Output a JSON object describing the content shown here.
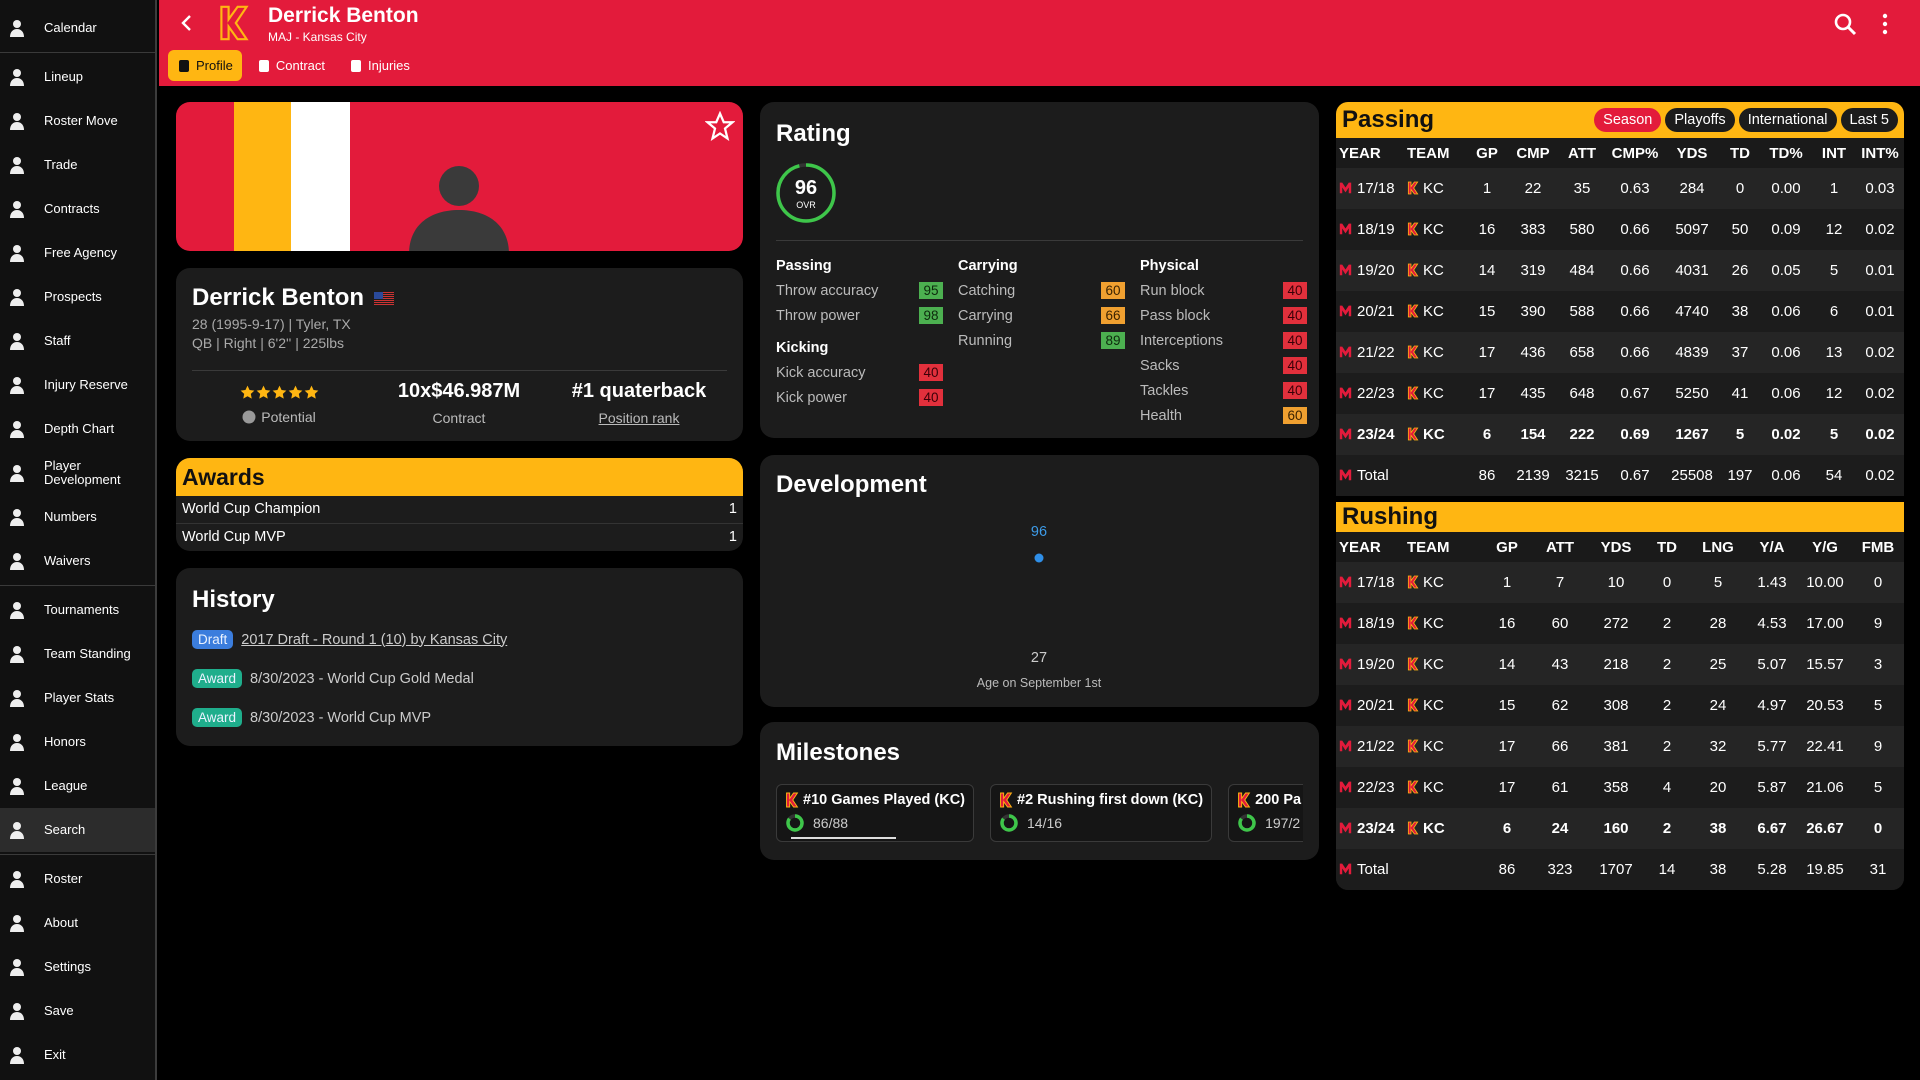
{
  "header": {
    "name": "Derrick Benton",
    "subtitle": "MAJ - Kansas City",
    "tabs": [
      {
        "label": "Profile",
        "selected": true
      },
      {
        "label": "Contract"
      },
      {
        "label": "Injuries"
      }
    ]
  },
  "sidebar": {
    "groups": [
      [
        {
          "label": "Calendar"
        }
      ],
      [
        {
          "label": "Lineup"
        },
        {
          "label": "Roster Move"
        },
        {
          "label": "Trade"
        },
        {
          "label": "Contracts"
        },
        {
          "label": "Free Agency"
        },
        {
          "label": "Prospects"
        },
        {
          "label": "Staff"
        },
        {
          "label": "Injury Reserve"
        },
        {
          "label": "Depth Chart"
        },
        {
          "label": "Player Development"
        },
        {
          "label": "Numbers"
        },
        {
          "label": "Waivers"
        }
      ],
      [
        {
          "label": "Tournaments"
        },
        {
          "label": "Team Standing"
        },
        {
          "label": "Player Stats"
        },
        {
          "label": "Honors"
        },
        {
          "label": "League"
        },
        {
          "label": "Search",
          "selected": true
        }
      ],
      [
        {
          "label": "Roster"
        },
        {
          "label": "About"
        },
        {
          "label": "Settings"
        },
        {
          "label": "Save"
        },
        {
          "label": "Exit"
        }
      ]
    ]
  },
  "profile": {
    "name": "Derrick Benton",
    "line1": "28 (1995-9-17) | Tyler, TX",
    "line2": "QB | Right | 6'2'' | 225lbs",
    "potential_stars": 5,
    "potential_label": "Potential",
    "contract": "10x$46.987M",
    "contract_label": "Contract",
    "rank": "#1 quaterback",
    "rank_label": "Position rank"
  },
  "awards": {
    "title": "Awards",
    "items": [
      {
        "name": "World Cup Champion",
        "count": 1
      },
      {
        "name": "World Cup MVP",
        "count": 1
      }
    ]
  },
  "history": {
    "title": "History",
    "items": [
      {
        "tag": "Draft",
        "color": "#3b7ddd",
        "text": "2017 Draft - Round 1 (10) by Kansas City",
        "link": true
      },
      {
        "tag": "Award",
        "color": "#1fae8c",
        "text": "8/30/2023 - World Cup Gold Medal"
      },
      {
        "tag": "Award",
        "color": "#1fae8c",
        "text": "8/30/2023 - World Cup MVP"
      }
    ]
  },
  "rating": {
    "title": "Rating",
    "ovr": 96,
    "ovr_label": "OVR",
    "columns": [
      [
        {
          "title": "Passing",
          "items": [
            {
              "label": "Throw accuracy",
              "value": 95
            },
            {
              "label": "Throw power",
              "value": 98
            }
          ]
        },
        {
          "title": "Kicking",
          "items": [
            {
              "label": "Kick accuracy",
              "value": 40
            },
            {
              "label": "Kick power",
              "value": 40
            }
          ]
        }
      ],
      [
        {
          "title": "Carrying",
          "items": [
            {
              "label": "Catching",
              "value": 60
            },
            {
              "label": "Carrying",
              "value": 66
            },
            {
              "label": "Running",
              "value": 89
            }
          ]
        }
      ],
      [
        {
          "title": "Physical",
          "items": [
            {
              "label": "Run block",
              "value": 40
            },
            {
              "label": "Pass block",
              "value": 40
            },
            {
              "label": "Interceptions",
              "value": 40
            },
            {
              "label": "Sacks",
              "value": 40
            },
            {
              "label": "Tackles",
              "value": 40
            },
            {
              "label": "Health",
              "value": 60
            }
          ]
        }
      ]
    ]
  },
  "development": {
    "title": "Development",
    "x": [
      27
    ],
    "values": [
      96
    ],
    "x_label": "Age on September 1st"
  },
  "milestones": {
    "title": "Milestones",
    "items": [
      {
        "label": "#10 Games Played (KC)",
        "progress": "86/88"
      },
      {
        "label": "#2 Rushing first down (KC)",
        "progress": "14/16"
      },
      {
        "label": "200 Pa",
        "progress": "197/2"
      }
    ]
  },
  "tables": {
    "passing": {
      "title": "Passing",
      "filters": [
        {
          "label": "Season",
          "selected": true
        },
        {
          "label": "Playoffs"
        },
        {
          "label": "International"
        },
        {
          "label": "Last 5"
        }
      ],
      "columns": [
        "YEAR",
        "TEAM",
        "GP",
        "CMP",
        "ATT",
        "CMP%",
        "YDS",
        "TD",
        "TD%",
        "INT",
        "INT%"
      ],
      "rows": [
        {
          "cells": [
            "17/18",
            "KC",
            "1",
            "22",
            "35",
            "0.63",
            "284",
            "0",
            "0.00",
            "1",
            "0.03"
          ]
        },
        {
          "cells": [
            "18/19",
            "KC",
            "16",
            "383",
            "580",
            "0.66",
            "5097",
            "50",
            "0.09",
            "12",
            "0.02"
          ]
        },
        {
          "cells": [
            "19/20",
            "KC",
            "14",
            "319",
            "484",
            "0.66",
            "4031",
            "26",
            "0.05",
            "5",
            "0.01"
          ]
        },
        {
          "cells": [
            "20/21",
            "KC",
            "15",
            "390",
            "588",
            "0.66",
            "4740",
            "38",
            "0.06",
            "6",
            "0.01"
          ]
        },
        {
          "cells": [
            "21/22",
            "KC",
            "17",
            "436",
            "658",
            "0.66",
            "4839",
            "37",
            "0.06",
            "13",
            "0.02"
          ]
        },
        {
          "cells": [
            "22/23",
            "KC",
            "17",
            "435",
            "648",
            "0.67",
            "5250",
            "41",
            "0.06",
            "12",
            "0.02"
          ]
        },
        {
          "cells": [
            "23/24",
            "KC",
            "6",
            "154",
            "222",
            "0.69",
            "1267",
            "5",
            "0.02",
            "5",
            "0.02"
          ],
          "bold": true
        },
        {
          "cells": [
            "Total",
            null,
            "86",
            "2139",
            "3215",
            "0.67",
            "25508",
            "197",
            "0.06",
            "54",
            "0.02"
          ]
        }
      ]
    },
    "rushing": {
      "title": "Rushing",
      "columns": [
        "YEAR",
        "TEAM",
        "GP",
        "ATT",
        "YDS",
        "TD",
        "LNG",
        "Y/A",
        "Y/G",
        "FMB"
      ],
      "rows": [
        {
          "cells": [
            "17/18",
            "KC",
            "1",
            "7",
            "10",
            "0",
            "5",
            "1.43",
            "10.00",
            "0"
          ]
        },
        {
          "cells": [
            "18/19",
            "KC",
            "16",
            "60",
            "272",
            "2",
            "28",
            "4.53",
            "17.00",
            "9"
          ]
        },
        {
          "cells": [
            "19/20",
            "KC",
            "14",
            "43",
            "218",
            "2",
            "25",
            "5.07",
            "15.57",
            "3"
          ]
        },
        {
          "cells": [
            "20/21",
            "KC",
            "15",
            "62",
            "308",
            "2",
            "24",
            "4.97",
            "20.53",
            "5"
          ]
        },
        {
          "cells": [
            "21/22",
            "KC",
            "17",
            "66",
            "381",
            "2",
            "32",
            "5.77",
            "22.41",
            "9"
          ]
        },
        {
          "cells": [
            "22/23",
            "KC",
            "17",
            "61",
            "358",
            "4",
            "20",
            "5.87",
            "21.06",
            "5"
          ]
        },
        {
          "cells": [
            "23/24",
            "KC",
            "6",
            "24",
            "160",
            "2",
            "38",
            "6.67",
            "26.67",
            "0"
          ],
          "bold": true
        },
        {
          "cells": [
            "Total",
            null,
            "86",
            "323",
            "1707",
            "14",
            "38",
            "5.28",
            "19.85",
            "31"
          ]
        }
      ]
    }
  }
}
